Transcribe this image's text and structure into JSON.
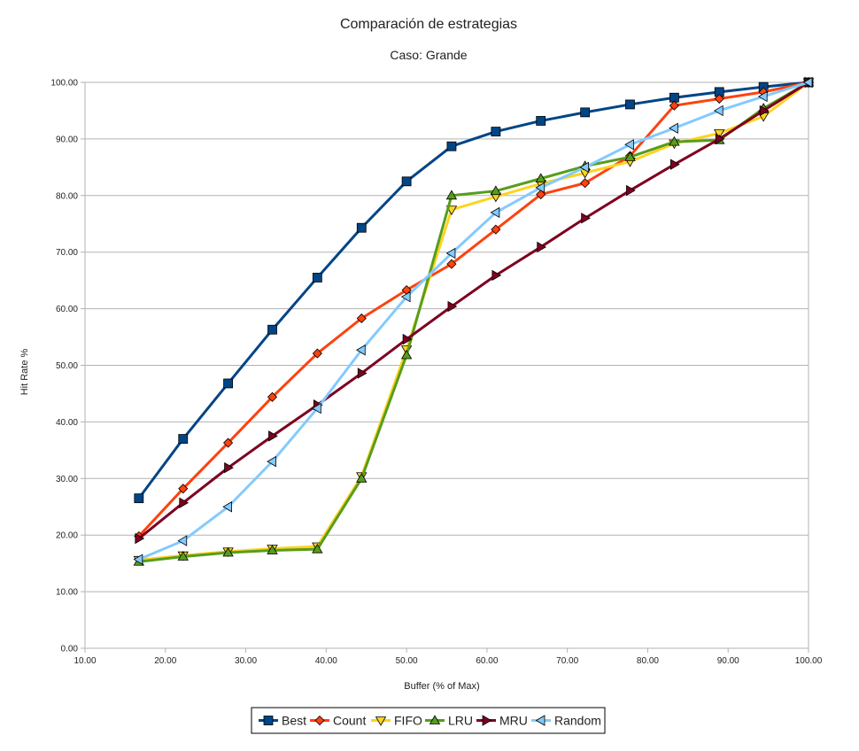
{
  "chart_data": {
    "type": "line",
    "title": "Comparación de estrategias",
    "subtitle": "Caso: Grande",
    "xlabel": "Buffer (% of Max)",
    "ylabel": "Hit Rate %",
    "xlim": [
      10,
      100
    ],
    "ylim": [
      0,
      100
    ],
    "x_ticks": [
      "10.00",
      "20.00",
      "30.00",
      "40.00",
      "50.00",
      "60.00",
      "70.00",
      "80.00",
      "90.00",
      "100.00"
    ],
    "y_ticks": [
      "0.00",
      "10.00",
      "20.00",
      "30.00",
      "40.00",
      "50.00",
      "60.00",
      "70.00",
      "80.00",
      "90.00",
      "100.00"
    ],
    "grid": true,
    "legend_position": "bottom",
    "x": [
      16.7,
      22.2,
      27.8,
      33.3,
      38.9,
      44.4,
      50.0,
      55.6,
      61.1,
      66.7,
      72.2,
      77.8,
      83.3,
      88.9,
      94.4,
      100.0
    ],
    "series": [
      {
        "name": "Best",
        "color": "#004586",
        "marker": "square",
        "values": [
          26.5,
          37.0,
          46.8,
          56.3,
          65.5,
          74.3,
          82.5,
          88.7,
          91.3,
          93.2,
          94.7,
          96.1,
          97.3,
          98.3,
          99.2,
          100.0
        ]
      },
      {
        "name": "Count",
        "color": "#ff420e",
        "marker": "diamond",
        "values": [
          19.8,
          28.2,
          36.3,
          44.4,
          52.1,
          58.3,
          63.3,
          67.9,
          74.0,
          80.2,
          82.2,
          87.0,
          95.9,
          97.1,
          98.3,
          100.0
        ]
      },
      {
        "name": "FIFO",
        "color": "#ffd320",
        "marker": "triangle-down",
        "values": [
          15.6,
          16.4,
          17.1,
          17.6,
          18.0,
          30.4,
          52.8,
          77.5,
          79.8,
          82.1,
          84.0,
          86.0,
          89.2,
          91.0,
          94.0,
          100.0
        ]
      },
      {
        "name": "LRU",
        "color": "#579d1c",
        "marker": "triangle-up",
        "values": [
          15.3,
          16.2,
          16.9,
          17.3,
          17.5,
          30.0,
          51.8,
          80.0,
          80.8,
          83.0,
          85.2,
          86.8,
          89.5,
          89.8,
          95.4,
          100.0
        ]
      },
      {
        "name": "MRU",
        "color": "#7e0021",
        "marker": "triangle-right",
        "values": [
          19.4,
          25.7,
          31.9,
          37.5,
          43.0,
          48.6,
          54.6,
          60.4,
          65.9,
          70.9,
          76.0,
          80.9,
          85.5,
          90.0,
          95.0,
          100.0
        ]
      },
      {
        "name": "Random",
        "color": "#83caff",
        "marker": "triangle-left",
        "values": [
          15.7,
          19.0,
          25.0,
          33.0,
          42.4,
          52.7,
          62.1,
          69.8,
          77.0,
          81.4,
          85.0,
          89.0,
          91.9,
          95.0,
          97.5,
          100.0
        ]
      }
    ]
  }
}
